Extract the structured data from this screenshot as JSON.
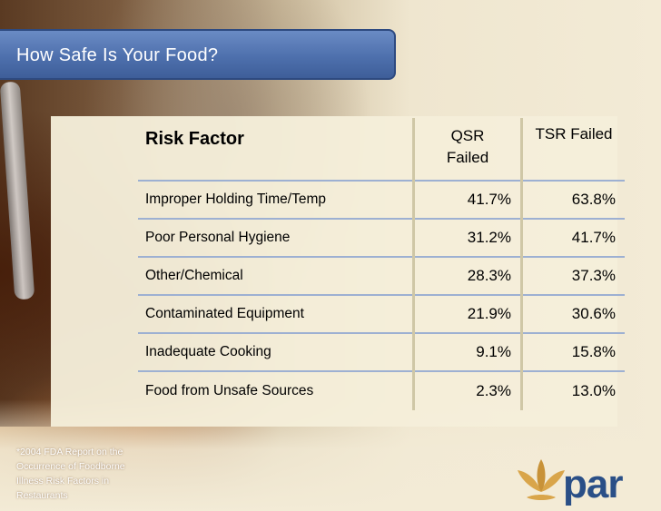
{
  "slide": {
    "title": "How Safe Is Your Food?",
    "footnote": "*2004 FDA Report on the Occurrence of Foodborne Illness Risk Factors in Restaurants",
    "logo_text": "par"
  },
  "table": {
    "headers": {
      "factor": "Risk Factor",
      "qsr_line1": "QSR",
      "qsr_line2": "Failed",
      "tsr": "TSR Failed"
    },
    "rows": [
      {
        "factor": "Improper Holding Time/Temp",
        "qsr": "41.7%",
        "tsr": "63.8%"
      },
      {
        "factor": "Poor Personal Hygiene",
        "qsr": "31.2%",
        "tsr": "41.7%"
      },
      {
        "factor": "Other/Chemical",
        "qsr": "28.3%",
        "tsr": "37.3%"
      },
      {
        "factor": "Contaminated Equipment",
        "qsr": "21.9%",
        "tsr": "30.6%"
      },
      {
        "factor": "Inadequate Cooking",
        "qsr": "9.1%",
        "tsr": "15.8%"
      },
      {
        "factor": "Food from Unsafe Sources",
        "qsr": "2.3%",
        "tsr": "13.0%"
      }
    ]
  },
  "colors": {
    "title_bar": "#4e70ad",
    "row_rule": "#9db0d2",
    "logo_blue": "#2a4f87",
    "logo_gold": "#d9a54a"
  }
}
